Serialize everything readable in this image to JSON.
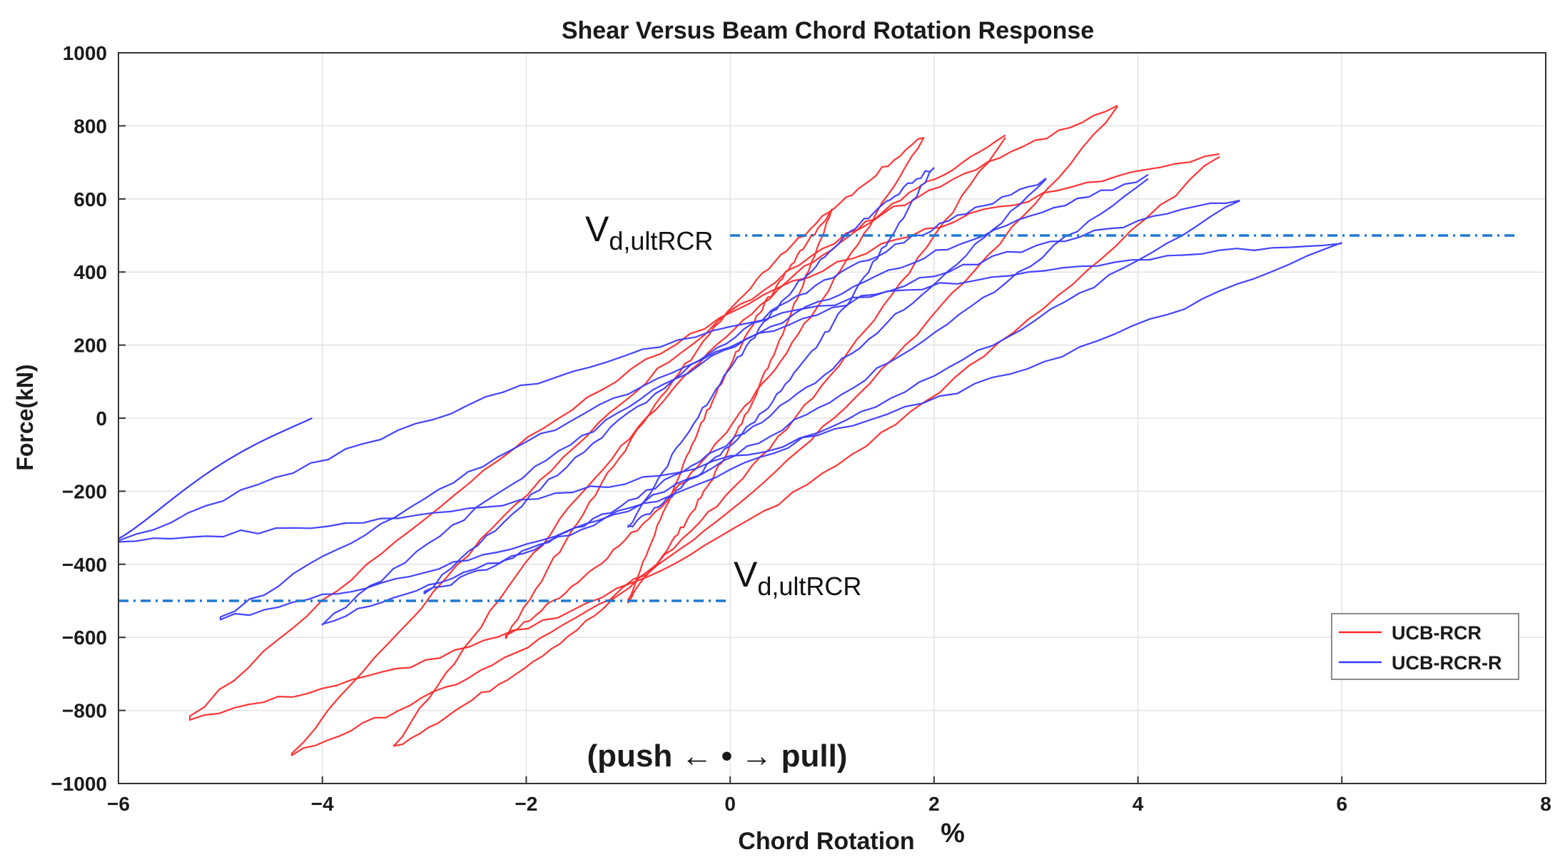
{
  "chart_data": {
    "type": "line",
    "title": "Shear Versus Beam Chord Rotation Response",
    "xlabel": "Chord Rotation",
    "xlabel_unit": "%",
    "ylabel": "Force(kN)",
    "xlim": [
      -6,
      8
    ],
    "ylim": [
      -1000,
      1000
    ],
    "x_ticks": [
      -6,
      -4,
      -2,
      0,
      2,
      4,
      6,
      8
    ],
    "y_ticks": [
      -1000,
      -800,
      -600,
      -400,
      -200,
      0,
      200,
      400,
      600,
      800,
      1000
    ],
    "x_tick_labels": [
      "−6",
      "−4",
      "−2",
      "0",
      "2",
      "4",
      "6",
      "8"
    ],
    "y_tick_labels": [
      "−1000",
      "−800",
      "−600",
      "−400",
      "−200",
      "0",
      "200",
      "400",
      "600",
      "800",
      "1000"
    ],
    "grid": true,
    "legend_position": "bottom-right",
    "series": [
      {
        "name": "UCB-RCR",
        "color": "#ff2a2a",
        "cycles": [
          {
            "amp_pos": 1.0,
            "peak_pos": 570,
            "amp_neg": -1.0,
            "peak_neg": -500,
            "offset": 110
          },
          {
            "amp_pos": 1.9,
            "peak_pos": 770,
            "amp_neg": -2.2,
            "peak_neg": -600,
            "offset": 160
          },
          {
            "amp_pos": 2.7,
            "peak_pos": 770,
            "amp_neg": -3.3,
            "peak_neg": -900,
            "offset": 220
          },
          {
            "amp_pos": 3.8,
            "peak_pos": 850,
            "amp_neg": -4.3,
            "peak_neg": -920,
            "offset": 270
          },
          {
            "amp_pos": 4.8,
            "peak_pos": 720,
            "amp_neg": -5.3,
            "peak_neg": -820,
            "offset": 300
          }
        ]
      },
      {
        "name": "UCB-RCR-R",
        "color": "#3a3aff",
        "cycles": [
          {
            "amp_pos": 2.0,
            "peak_pos": 690,
            "amp_neg": -1.0,
            "peak_neg": -300,
            "offset": 120
          },
          {
            "amp_pos": 3.1,
            "peak_pos": 650,
            "amp_neg": -3.0,
            "peak_neg": -480,
            "offset": 140
          },
          {
            "amp_pos": 4.1,
            "peak_pos": 660,
            "amp_neg": -4.0,
            "peak_neg": -560,
            "offset": 150
          },
          {
            "amp_pos": 5.0,
            "peak_pos": 600,
            "amp_neg": -5.0,
            "peak_neg": -550,
            "offset": 170
          },
          {
            "amp_pos": 6.0,
            "peak_pos": 480,
            "amp_neg": -6.0,
            "peak_neg": -340,
            "offset": 180
          }
        ],
        "final_branch": {
          "from_x": -6.0,
          "from_y": -330,
          "to_x": -4.1,
          "to_y": 0
        }
      }
    ],
    "reference_lines": [
      {
        "label_main": "V",
        "label_sub": "d,ultRCR",
        "y": 500,
        "x_from": 0,
        "x_to": 7.7,
        "color": "#1f78d1"
      },
      {
        "label_main": "V",
        "label_sub": "d,ultRCR",
        "y": -500,
        "x_from": -6,
        "x_to": 0,
        "color": "#1f78d1"
      }
    ],
    "annotation": "(push ← • → pull)"
  }
}
